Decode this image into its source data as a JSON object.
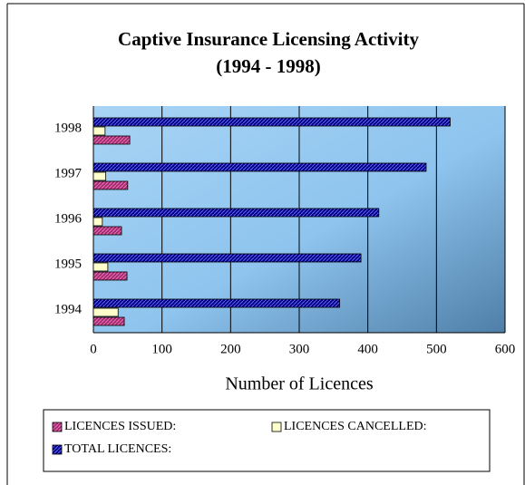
{
  "chart_data": {
    "type": "hbar",
    "title": [
      "Captive Insurance Licensing Activity",
      "(1994 - 1998)"
    ],
    "x_label": "Number of Licences",
    "categories": [
      "1994",
      "1995",
      "1996",
      "1997",
      "1998"
    ],
    "series": [
      {
        "name": "LICENCES ISSUED:",
        "color": "#993366",
        "values": [
          45,
          49,
          41,
          50,
          53
        ]
      },
      {
        "name": "LICENCES CANCELLED:",
        "color": "#ffffcc",
        "values": [
          36,
          21,
          13,
          18,
          17
        ]
      },
      {
        "name": "TOTAL LICENCES:",
        "color": "#000080",
        "values": [
          359,
          390,
          416,
          485,
          520
        ]
      }
    ],
    "xlim": [
      0,
      600
    ],
    "xticks": [
      0,
      100,
      200,
      300,
      400,
      500,
      600
    ],
    "grid": true,
    "legend": "bottom"
  }
}
